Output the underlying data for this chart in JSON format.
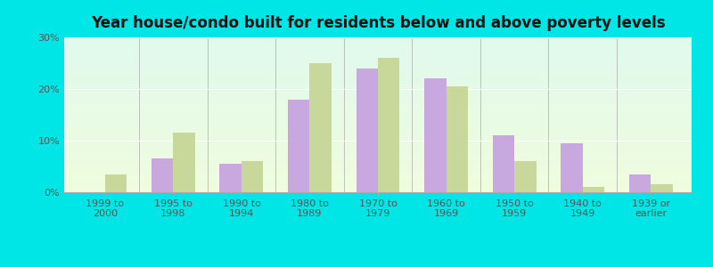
{
  "title": "Year house/condo built for residents below and above poverty levels",
  "categories": [
    "1999 to\n2000",
    "1995 to\n1998",
    "1990 to\n1994",
    "1980 to\n1989",
    "1970 to\n1979",
    "1960 to\n1969",
    "1950 to\n1959",
    "1940 to\n1949",
    "1939 or\nearlier"
  ],
  "below_poverty": [
    0,
    6.5,
    5.5,
    18,
    24,
    22,
    11,
    9.5,
    3.5
  ],
  "above_poverty": [
    3.5,
    11.5,
    6,
    25,
    26,
    20.5,
    6,
    1,
    1.5
  ],
  "below_color": "#c9a8e0",
  "above_color": "#c8d89a",
  "ylim": [
    0,
    30
  ],
  "yticks": [
    0,
    10,
    20,
    30
  ],
  "ytick_labels": [
    "0%",
    "10%",
    "20%",
    "30%"
  ],
  "outer_bg": "#00e5e5",
  "title_fontsize": 12,
  "tick_fontsize": 8,
  "legend_fontsize": 9
}
